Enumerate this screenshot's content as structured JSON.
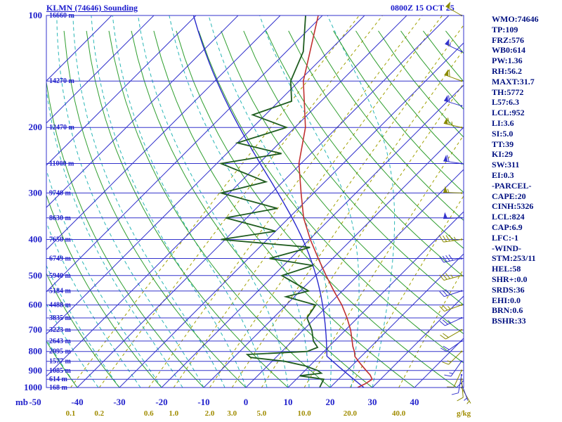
{
  "header": {
    "title": "KLMN (74646) Sounding",
    "datetime": "0800Z 15 OCT 25"
  },
  "left_axis": {
    "unit": "mb",
    "pressure_labels": [
      100,
      200,
      300,
      400,
      500,
      600,
      700,
      800,
      900,
      1000
    ],
    "height_labels": [
      "16660 m",
      "14270 m",
      "12470 m",
      "11000 m",
      "9740 m",
      "8630 m",
      "7650 m",
      "6749 m",
      "5940 m",
      "5184 m",
      "4488 m",
      "3835 m",
      "3223 m",
      "2643 m",
      "2095 m",
      "1577 m",
      "1085 m",
      "614 m",
      "168 m"
    ]
  },
  "bottom_axis": {
    "temp_labels": [
      -50,
      -40,
      -30,
      -20,
      -10,
      0,
      10,
      20,
      30,
      40
    ],
    "mixing_ratio_labels": [
      "0.1",
      "0.2",
      "0.6",
      "1.0",
      "2.0",
      "3.0",
      "5.0",
      "10.0",
      "20.0",
      "40.0"
    ],
    "mixing_ratio_unit": "g/kg"
  },
  "indices_panel": {
    "lines": [
      "WMO:74646",
      "TP:109",
      "FRZ:576",
      "WB0:614",
      "PW:1.36",
      "RH:56.2",
      "MAXT:31.7",
      "TH:5772",
      "L57:6.3",
      "LCL:952",
      "LI:3.6",
      "SI:5.0",
      "TT:39",
      "KI:29",
      "SW:311",
      "EI:0.3",
      "-PARCEL-",
      "CAPE:20",
      "CINH:5326",
      "LCL:824",
      "CAP:6.9",
      "LFC:-1",
      "-WIND-",
      "STM:253/11",
      "HEL:58",
      "SHR+:0.0",
      "SRDS:36",
      "EHI:0.0",
      "BRN:0.6",
      "BSHR:33"
    ]
  },
  "chart_data": {
    "type": "skewt-log-p",
    "title": "KLMN (74646) Sounding",
    "valid": "0800Z 15 OCT 25",
    "station": "KLMN",
    "wmo_id": "74646",
    "pressure_range_mb": [
      100,
      1000
    ],
    "isobar_step_mb": 50,
    "isotherm_step_c": 10,
    "temp_axis_range_c": [
      -50,
      40
    ],
    "dry_adiabat_theta_c": [
      -40,
      -30,
      -20,
      -10,
      0,
      10,
      20,
      30,
      40,
      50,
      60,
      70,
      80,
      90,
      100,
      110,
      120,
      130,
      140,
      150,
      160,
      170,
      180
    ],
    "moist_adiabat_thetaw_c": [
      -40,
      -35,
      -30,
      -25,
      -20,
      -15,
      -10,
      -5,
      0,
      5,
      10,
      15,
      20,
      25,
      30
    ],
    "mixing_ratio_gkg": [
      0.1,
      0.2,
      0.6,
      1.0,
      2.0,
      3.0,
      5.0,
      10.0,
      20.0,
      40.0
    ],
    "temperature_profile": {
      "pressure_mb": [
        1000,
        975,
        950,
        925,
        900,
        875,
        850,
        825,
        800,
        775,
        750,
        700,
        650,
        600,
        550,
        500,
        450,
        400,
        350,
        300,
        250,
        200,
        150,
        100
      ],
      "temp_c": [
        26.5,
        27.5,
        28.0,
        26.5,
        24.5,
        22.5,
        20.5,
        18.5,
        17.2,
        15.6,
        14.2,
        11.2,
        7.5,
        3.2,
        -2.0,
        -7.5,
        -13.4,
        -19.8,
        -26.5,
        -33.0,
        -40.5,
        -47.5,
        -59.0,
        -71.0
      ]
    },
    "dewpoint_profile": {
      "pressure_mb": [
        1000,
        975,
        950,
        930,
        915,
        900,
        875,
        850,
        830,
        815,
        800,
        780,
        750,
        700,
        650,
        600,
        570,
        550,
        500,
        470,
        450,
        420,
        400,
        380,
        350,
        330,
        300,
        280,
        250,
        235,
        220,
        200,
        185,
        170,
        150,
        125,
        100
      ],
      "dewpoint_c": [
        17.5,
        17.0,
        16.5,
        10.0,
        14.5,
        13.0,
        9.0,
        3.0,
        -6.0,
        -7.5,
        6.0,
        7.5,
        5.0,
        2.0,
        -2.0,
        -3.0,
        -12.0,
        -8.0,
        -18.0,
        -13.0,
        -25.0,
        -18.0,
        -41.0,
        -30.0,
        -45.0,
        -35.0,
        -52.0,
        -44.0,
        -59.0,
        -47.0,
        -60.0,
        -52.0,
        -63.0,
        -57.0,
        -62.0,
        -66.0,
        -74.0
      ]
    },
    "parcel": {
      "surface_temp_c": 28.0,
      "surface_pressure_mb": 1000,
      "lcl_mb": 824
    },
    "wind_barbs": [
      {
        "p": 1000,
        "dir": 150,
        "spd": 5,
        "c": "olive"
      },
      {
        "p": 975,
        "dir": 160,
        "spd": 5,
        "c": "blue"
      },
      {
        "p": 950,
        "dir": 175,
        "spd": 10,
        "c": "olive"
      },
      {
        "p": 925,
        "dir": 190,
        "spd": 10,
        "c": "blue"
      },
      {
        "p": 900,
        "dir": 205,
        "spd": 10,
        "c": "olive"
      },
      {
        "p": 850,
        "dir": 215,
        "spd": 15,
        "c": "blue"
      },
      {
        "p": 800,
        "dir": 225,
        "spd": 15,
        "c": "olive"
      },
      {
        "p": 750,
        "dir": 235,
        "spd": 20,
        "c": "blue"
      },
      {
        "p": 700,
        "dir": 240,
        "spd": 20,
        "c": "olive"
      },
      {
        "p": 650,
        "dir": 245,
        "spd": 25,
        "c": "blue"
      },
      {
        "p": 600,
        "dir": 250,
        "spd": 25,
        "c": "olive"
      },
      {
        "p": 550,
        "dir": 252,
        "spd": 30,
        "c": "blue"
      },
      {
        "p": 500,
        "dir": 255,
        "spd": 35,
        "c": "olive"
      },
      {
        "p": 450,
        "dir": 258,
        "spd": 40,
        "c": "blue"
      },
      {
        "p": 400,
        "dir": 262,
        "spd": 45,
        "c": "olive"
      },
      {
        "p": 350,
        "dir": 268,
        "spd": 50,
        "c": "blue"
      },
      {
        "p": 300,
        "dir": 272,
        "spd": 55,
        "c": "olive"
      },
      {
        "p": 250,
        "dir": 278,
        "spd": 60,
        "c": "blue"
      },
      {
        "p": 200,
        "dir": 283,
        "spd": 65,
        "c": "olive"
      },
      {
        "p": 175,
        "dir": 287,
        "spd": 60,
        "c": "blue"
      },
      {
        "p": 150,
        "dir": 290,
        "spd": 60,
        "c": "olive"
      },
      {
        "p": 125,
        "dir": 295,
        "spd": 55,
        "c": "blue"
      },
      {
        "p": 100,
        "dir": 300,
        "spd": 50,
        "c": "olive"
      }
    ],
    "colors": {
      "grid_blue": "#3333cc",
      "dry_adiabat": "#2f9e2f",
      "moist_adiabat": "#29b6b6",
      "mixing_ratio": "#a0a000",
      "temperature": "#c03030",
      "dewpoint": "#1f5c1f",
      "parcel": "#2929cc",
      "barb_blue": "#3333cc",
      "barb_olive": "#8a8a00",
      "text_blue": "#2222cc",
      "text_navy": "#001080",
      "text_olive": "#a08c00"
    }
  }
}
